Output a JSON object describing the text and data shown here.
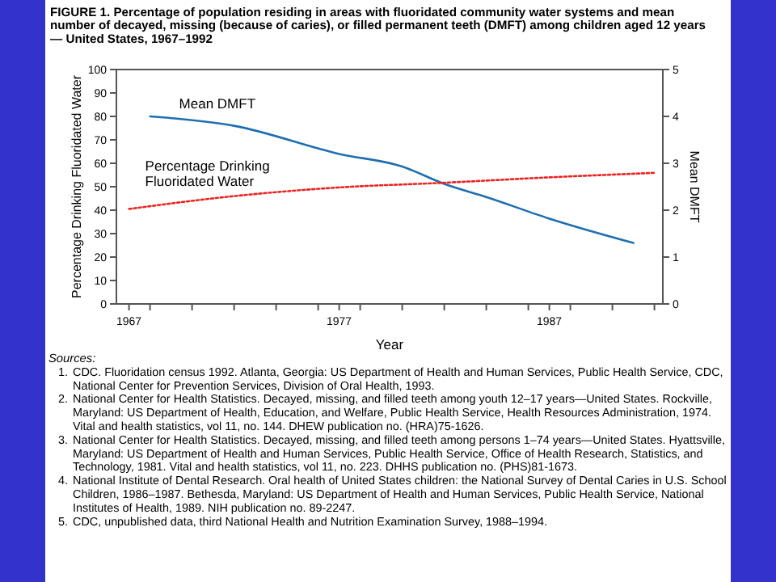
{
  "chart_data": {
    "type": "line",
    "title": "FIGURE 1. Percentage of population residing in areas with fluoridated community water systems and mean number of decayed, missing (because of caries), or filled permanent teeth (DMFT) among children aged 12 years — United States, 1967–1992",
    "xlabel": "Year",
    "ylabel": "Percentage Drinking Fluoridated Water",
    "y2label": "Mean DMFT",
    "xlim": [
      1966.4,
      1992.4
    ],
    "xticks": [
      1967,
      {
        "value": 1968,
        "label": null
      },
      {
        "value": 1970,
        "label": null
      },
      {
        "value": 1972,
        "label": null
      },
      {
        "value": 1974,
        "label": null
      },
      {
        "value": 1976,
        "label": null
      },
      1977,
      {
        "value": 1978,
        "label": null
      },
      {
        "value": 1980,
        "label": null
      },
      {
        "value": 1982,
        "label": null
      },
      {
        "value": 1984,
        "label": null
      },
      {
        "value": 1986,
        "label": null
      },
      1987,
      {
        "value": 1988,
        "label": null
      },
      {
        "value": 1990,
        "label": null
      },
      {
        "value": 1992,
        "label": null
      }
    ],
    "ylim": [
      0,
      100
    ],
    "yticks": [
      0,
      10,
      20,
      30,
      40,
      50,
      60,
      70,
      80,
      90,
      100
    ],
    "y2lim": [
      0,
      5
    ],
    "y2ticks": [
      0,
      1,
      2,
      3,
      4,
      5
    ],
    "grid": false,
    "series": [
      {
        "name": "Mean DMFT",
        "color": "#1f6fb0",
        "axis": "y2",
        "line_style": "solid",
        "x": [
          1968,
          1972,
          1977,
          1980,
          1982,
          1984,
          1987,
          1991
        ],
        "values": [
          4.0,
          3.8,
          3.2,
          2.93,
          2.56,
          2.28,
          1.82,
          1.3
        ]
      },
      {
        "name": "Percentage Drinking Fluoridated Water",
        "color": "#ee2222",
        "line_style": "dotted",
        "x": [
          1967,
          1972,
          1977,
          1982,
          1987,
          1992
        ],
        "values": [
          40.5,
          46,
          49.7,
          51.7,
          54,
          55.9
        ]
      }
    ],
    "annotations": [
      "Sources:",
      "1. CDC. Fluoridation census 1992. Atlanta, Georgia: US Department of Health and Human Services, Public Health Service, CDC, National Center for Prevention Services, Division of Oral Health, 1993.",
      "2. National Center for Health Statistics. Decayed, missing, and filled teeth among youth 12–17 years—United States. Rockville, Maryland: US Department of Health, Education, and Welfare, Public Health Service, Health Resources Administration, 1974. Vital and health statistics, vol 11, no. 144. DHEW publication no. (HRA)75-1626.",
      "3. National Center for Health Statistics. Decayed, missing, and filled teeth among persons 1–74 years—United States. Hyattsville, Maryland: US Department of Health and Human Services, Public Health Service, Office of Health Research, Statistics, and Technology, 1981. Vital and health statistics, vol 11, no. 223. DHHS publication no. (PHS)81-1673.",
      "4. National Institute of Dental Research. Oral health of United States children: the National Survey of Dental Caries in U.S. School Children, 1986–1987. Bethesda, Maryland: US Department of Health and Human Services, Public Health Service, National Institutes of Health, 1989. NIH publication no. 89-2247.",
      "5. CDC, unpublished data, third National Health and Nutrition Examination Survey, 1988–1994."
    ]
  }
}
